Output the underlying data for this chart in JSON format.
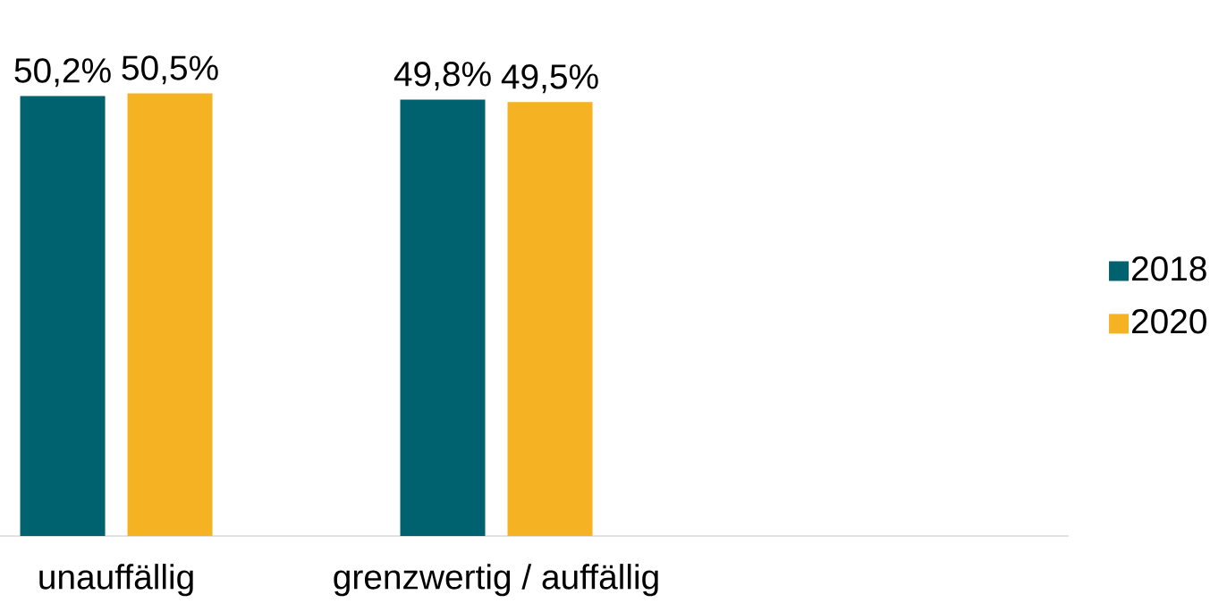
{
  "chart_data": {
    "type": "bar",
    "categories": [
      "unauffällig",
      "grenzwertig / auffällig"
    ],
    "series": [
      {
        "name": "2018",
        "color": "#00626f",
        "values": [
          50.2,
          49.8
        ],
        "value_labels": [
          "50,2%",
          "49,8%"
        ]
      },
      {
        "name": "2020",
        "color": "#f5b324",
        "values": [
          50.5,
          49.5
        ],
        "value_labels": [
          "50,5%",
          "49,5%"
        ]
      }
    ],
    "tick_labels": "x",
    "legend": "right"
  }
}
